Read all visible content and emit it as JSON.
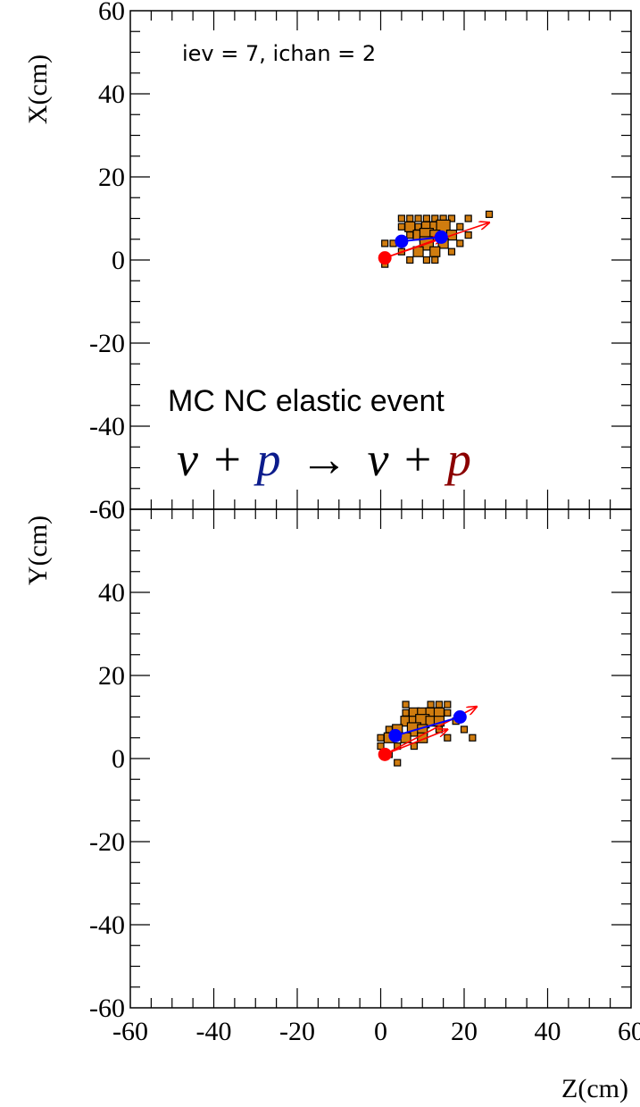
{
  "chart_data": [
    {
      "type": "scatter",
      "panel": "top",
      "ylabel": "X(cm)",
      "xlim": [
        -60,
        60
      ],
      "ylim": [
        -60,
        60
      ],
      "x_ticks": [
        -60,
        -40,
        -20,
        0,
        20,
        40,
        60
      ],
      "y_ticks": [
        -60,
        -40,
        -20,
        0,
        20,
        40,
        60
      ],
      "y_tick_labels": [
        "-60",
        "-40",
        "-20",
        "0",
        "20",
        "40",
        "60"
      ],
      "annotations": {
        "event_info": "iev = 7, ichan = 2",
        "event_title": "MC NC elastic event",
        "reaction": {
          "nu1": "ν",
          "plus1": "+",
          "p_in": "p",
          "arrow": "→",
          "nu2": "ν",
          "plus2": "+",
          "p_out": "p"
        }
      },
      "hits": [
        {
          "z": 1,
          "x": 4,
          "s": 1
        },
        {
          "z": 1,
          "x": -1,
          "s": 1
        },
        {
          "z": 5,
          "x": 10,
          "s": 1
        },
        {
          "z": 7,
          "x": 10,
          "s": 1
        },
        {
          "z": 9,
          "x": 10,
          "s": 1
        },
        {
          "z": 11,
          "x": 10,
          "s": 1
        },
        {
          "z": 13,
          "x": 10,
          "s": 1
        },
        {
          "z": 15,
          "x": 10,
          "s": 1
        },
        {
          "z": 17,
          "x": 10,
          "s": 1
        },
        {
          "z": 21,
          "x": 10,
          "s": 1
        },
        {
          "z": 26,
          "x": 11,
          "s": 1
        },
        {
          "z": 5,
          "x": 8,
          "s": 1
        },
        {
          "z": 7,
          "x": 8,
          "s": 2
        },
        {
          "z": 9,
          "x": 8,
          "s": 1
        },
        {
          "z": 11,
          "x": 8,
          "s": 2
        },
        {
          "z": 13,
          "x": 8,
          "s": 2
        },
        {
          "z": 15,
          "x": 8,
          "s": 3
        },
        {
          "z": 19,
          "x": 8,
          "s": 1
        },
        {
          "z": 7,
          "x": 6,
          "s": 1
        },
        {
          "z": 9,
          "x": 6,
          "s": 2
        },
        {
          "z": 11,
          "x": 6,
          "s": 3
        },
        {
          "z": 13,
          "x": 6,
          "s": 2
        },
        {
          "z": 17,
          "x": 6,
          "s": 2
        },
        {
          "z": 21,
          "x": 6,
          "s": 1
        },
        {
          "z": 3,
          "x": 4,
          "s": 1
        },
        {
          "z": 11,
          "x": 4,
          "s": 3
        },
        {
          "z": 15,
          "x": 4,
          "s": 2
        },
        {
          "z": 19,
          "x": 4,
          "s": 1
        },
        {
          "z": 5,
          "x": 2,
          "s": 1
        },
        {
          "z": 9,
          "x": 2,
          "s": 2
        },
        {
          "z": 13,
          "x": 2,
          "s": 2
        },
        {
          "z": 17,
          "x": 2,
          "s": 1
        },
        {
          "z": 11,
          "x": 0,
          "s": 1
        },
        {
          "z": 13,
          "x": 0,
          "s": 1
        },
        {
          "z": 7,
          "x": 0,
          "s": 1
        }
      ],
      "vertex": {
        "z": 1,
        "x": 0.5
      },
      "blue_points": [
        {
          "z": 5,
          "x": 4.5
        },
        {
          "z": 14.5,
          "x": 5.5
        }
      ],
      "red_arrows": [
        {
          "from": {
            "z": 1,
            "x": 0.5
          },
          "to": {
            "z": 26,
            "x": 9
          }
        },
        {
          "from": {
            "z": 1,
            "x": 0.5
          },
          "to": {
            "z": 15,
            "x": 5.5
          }
        }
      ],
      "blue_segment": {
        "from": {
          "z": 5,
          "x": 4.5
        },
        "to": {
          "z": 14.5,
          "x": 5.5
        }
      }
    },
    {
      "type": "scatter",
      "panel": "bottom",
      "ylabel": "Y(cm)",
      "xlabel": "Z(cm)",
      "xlim": [
        -60,
        60
      ],
      "ylim": [
        -60,
        60
      ],
      "x_ticks": [
        -60,
        -40,
        -20,
        0,
        20,
        40,
        60
      ],
      "x_tick_labels": [
        "-60",
        "-40",
        "-20",
        "0",
        "20",
        "40",
        "60"
      ],
      "y_ticks": [
        -60,
        -40,
        -20,
        0,
        20,
        40,
        60
      ],
      "y_tick_labels": [
        "-60",
        "-40",
        "-20",
        "0",
        "20",
        "40",
        "60"
      ],
      "hits": [
        {
          "z": 6,
          "x": 13,
          "s": 1
        },
        {
          "z": 12,
          "x": 13,
          "s": 1
        },
        {
          "z": 14,
          "x": 13,
          "s": 1
        },
        {
          "z": 16,
          "x": 13,
          "s": 1
        },
        {
          "z": 6,
          "x": 11,
          "s": 1
        },
        {
          "z": 8,
          "x": 11,
          "s": 2
        },
        {
          "z": 10,
          "x": 11,
          "s": 2
        },
        {
          "z": 12,
          "x": 11,
          "s": 2
        },
        {
          "z": 14,
          "x": 11,
          "s": 2
        },
        {
          "z": 16,
          "x": 11,
          "s": 1
        },
        {
          "z": 6,
          "x": 9,
          "s": 2
        },
        {
          "z": 8,
          "x": 9,
          "s": 2
        },
        {
          "z": 10,
          "x": 9,
          "s": 3
        },
        {
          "z": 12,
          "x": 9,
          "s": 2
        },
        {
          "z": 14,
          "x": 9,
          "s": 2
        },
        {
          "z": 18,
          "x": 9,
          "s": 1
        },
        {
          "z": 2,
          "x": 7,
          "s": 1
        },
        {
          "z": 4,
          "x": 7,
          "s": 2
        },
        {
          "z": 8,
          "x": 7,
          "s": 3
        },
        {
          "z": 10,
          "x": 7,
          "s": 2
        },
        {
          "z": 14,
          "x": 7,
          "s": 1
        },
        {
          "z": 20,
          "x": 7,
          "s": 1
        },
        {
          "z": 0,
          "x": 5,
          "s": 1
        },
        {
          "z": 2,
          "x": 5,
          "s": 2
        },
        {
          "z": 6,
          "x": 5,
          "s": 2
        },
        {
          "z": 10,
          "x": 5,
          "s": 2
        },
        {
          "z": 16,
          "x": 5,
          "s": 1
        },
        {
          "z": 22,
          "x": 5,
          "s": 1
        },
        {
          "z": 0,
          "x": 3,
          "s": 1
        },
        {
          "z": 4,
          "x": 3,
          "s": 1
        },
        {
          "z": 8,
          "x": 3,
          "s": 1
        },
        {
          "z": 2,
          "x": 1,
          "s": 1
        },
        {
          "z": 4,
          "x": -1,
          "s": 1
        }
      ],
      "vertex": {
        "z": 1,
        "x": 1
      },
      "blue_points": [
        {
          "z": 3.5,
          "x": 5.5
        },
        {
          "z": 19,
          "x": 10
        }
      ],
      "red_arrows": [
        {
          "from": {
            "z": 1,
            "x": 1
          },
          "to": {
            "z": 23,
            "x": 12.5
          }
        },
        {
          "from": {
            "z": 1,
            "x": 1
          },
          "to": {
            "z": 16,
            "x": 7
          }
        }
      ],
      "blue_segment": {
        "from": {
          "z": 3.5,
          "x": 5.5
        },
        "to": {
          "z": 19,
          "x": 10
        }
      }
    }
  ],
  "colors": {
    "hit_fill": "#d07c0f",
    "hit_stroke": "#000000",
    "vertex": "#ff0000",
    "track_points": "#0000ff",
    "arrow": "#ff0000",
    "p_in": "#0c1c8c",
    "p_out": "#8b0000",
    "axes": "#000000"
  }
}
